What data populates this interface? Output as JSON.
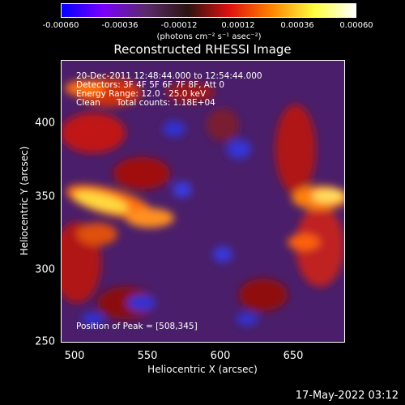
{
  "colorbar": {
    "ticks": [
      "-0.00060",
      "-0.00036",
      "-0.00012",
      "0.00012",
      "0.00036",
      "0.00060"
    ],
    "units": "(photons cm⁻² s⁻¹ asec⁻²)",
    "colors": [
      "#0000ff",
      "#7a00ff",
      "#5a2a6a",
      "#2a1410",
      "#e01010",
      "#ff8000",
      "#ffff40",
      "#ffffff"
    ]
  },
  "plot": {
    "title": "Reconstructed RHESSI Image",
    "info_lines": [
      "20-Dec-2011 12:48:44.000 to 12:54:44.000",
      "Detectors: 3F 4F 5F 6F 7F 8F, Att 0",
      "Energy Range: 12.0 - 25.0 keV",
      "Clean      Total counts: 1.18E+04"
    ],
    "peak_text": "Position of Peak = [508,345]"
  },
  "axes": {
    "xlabel": "Heliocentric X (arcsec)",
    "ylabel": "Heliocentric Y (arcsec)",
    "xticks": [
      "500",
      "550",
      "600",
      "650"
    ],
    "yticks": [
      "250",
      "300",
      "350",
      "400"
    ]
  },
  "footer": "17-May-2022 03:12"
}
